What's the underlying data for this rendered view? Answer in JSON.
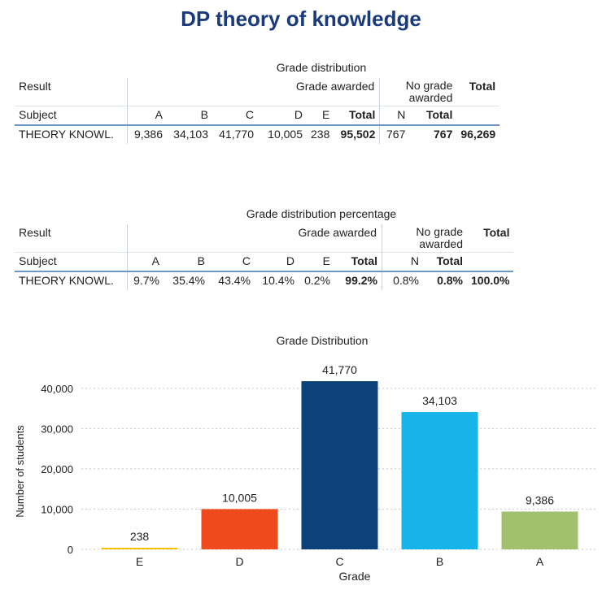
{
  "page_title": "DP theory of knowledge",
  "table1": {
    "caption": "Grade distribution",
    "result_label": "Result",
    "subject_label": "Subject",
    "group_awarded": "Grade awarded",
    "group_no_grade_line1": "No grade",
    "group_no_grade_line2": "awarded",
    "total_header": "Total",
    "columns": [
      "A",
      "B",
      "C",
      "D",
      "E",
      "Total",
      "N",
      "Total"
    ],
    "row": {
      "subject": "THEORY KNOWL.",
      "A": "9,386",
      "B": "34,103",
      "C": "41,770",
      "D": "10,005",
      "E": "238",
      "awarded_total": "95,502",
      "N": "767",
      "no_grade_total": "767",
      "grand_total": "96,269"
    }
  },
  "table2": {
    "caption": "Grade distribution percentage",
    "result_label": "Result",
    "subject_label": "Subject",
    "group_awarded": "Grade awarded",
    "group_no_grade_line1": "No grade",
    "group_no_grade_line2": "awarded",
    "total_header": "Total",
    "columns": [
      "A",
      "B",
      "C",
      "D",
      "E",
      "Total",
      "N",
      "Total"
    ],
    "row": {
      "subject": "THEORY KNOWL.",
      "A": "9.7%",
      "B": "35.4%",
      "C": "43.4%",
      "D": "10.4%",
      "E": "0.2%",
      "awarded_total": "99.2%",
      "N": "0.8%",
      "no_grade_total": "0.8%",
      "grand_total": "100.0%"
    }
  },
  "chart_data": {
    "type": "bar",
    "title": "Grade Distribution",
    "xlabel": "Grade",
    "ylabel": "Number of students",
    "categories": [
      "E",
      "D",
      "C",
      "B",
      "A"
    ],
    "values": [
      238,
      10005,
      41770,
      34103,
      9386
    ],
    "value_labels": [
      "238",
      "10,005",
      "41,770",
      "34,103",
      "9,386"
    ],
    "colors": [
      "#f2c200",
      "#ef4b1f",
      "#0b427a",
      "#16b4e8",
      "#a3c06f"
    ],
    "ylim": [
      0,
      44000
    ],
    "yticks": [
      0,
      10000,
      20000,
      30000,
      40000
    ],
    "ytick_labels": [
      "0",
      "10,000",
      "20,000",
      "30,000",
      "40,000"
    ],
    "grid": true
  }
}
